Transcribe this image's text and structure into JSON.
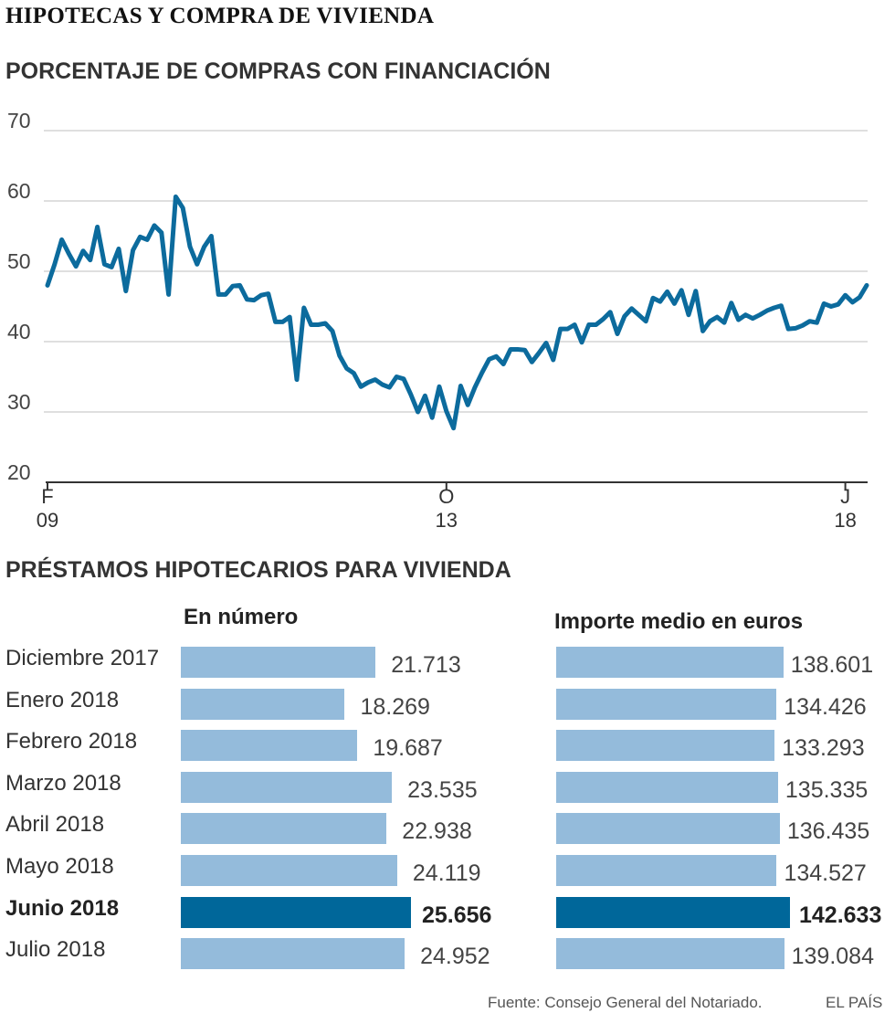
{
  "title": "HIPOTECAS Y COMPRA DE VIVIENDA",
  "footer": {
    "source": "Fuente: Consejo General del Notariado.",
    "publisher": "EL PAÍS"
  },
  "colors": {
    "line": "#0c6b9d",
    "bar": "#94bbdb",
    "bar_highlight": "#00679a",
    "grid": "#cccccc"
  },
  "chart_data": [
    {
      "type": "line",
      "title": "PORCENTAJE DE COMPRAS CON FINANCIACIÓN",
      "xlabel": "",
      "ylabel": "",
      "ylim": [
        20,
        70
      ],
      "yticks": [
        "70",
        "60",
        "50",
        "40",
        "30",
        "20"
      ],
      "xticks": [
        {
          "month": "F",
          "year": "09",
          "index": 0
        },
        {
          "month": "O",
          "year": "13",
          "index": 56
        },
        {
          "month": "J",
          "year": "18",
          "index": 112
        }
      ],
      "series": [
        {
          "name": "Porcentaje de compras con financiación",
          "values": [
            48,
            51,
            54.5,
            52.5,
            50.7,
            52.9,
            51.6,
            56.3,
            51,
            50.6,
            53.2,
            47.2,
            53,
            54.9,
            54.5,
            56.5,
            55.5,
            46.7,
            60.6,
            59,
            53.5,
            51,
            53.5,
            55,
            46.7,
            46.7,
            47.9,
            48,
            46,
            45.9,
            46.6,
            46.8,
            42.8,
            42.8,
            43.5,
            34.6,
            44.8,
            42.4,
            42.4,
            42.6,
            41.5,
            38,
            36.2,
            35.5,
            33.6,
            34.2,
            34.6,
            33.9,
            33.5,
            35,
            34.7,
            32.5,
            30,
            32.3,
            29.2,
            33.6,
            30.1,
            27.7,
            33.7,
            31,
            33.5,
            35.6,
            37.5,
            37.9,
            36.8,
            38.9,
            38.9,
            38.8,
            37.1,
            38.4,
            39.8,
            37.4,
            41.8,
            41.8,
            42.4,
            39.9,
            42.4,
            42.4,
            43.2,
            44.2,
            41.1,
            43.6,
            44.7,
            43.8,
            42.9,
            46.2,
            45.7,
            47.1,
            45.4,
            47.3,
            43.8,
            47.2,
            41.5,
            42.9,
            43.5,
            42.7,
            45.5,
            43.1,
            43.8,
            43.3,
            43.8,
            44.4,
            44.8,
            45.1,
            41.8,
            41.9,
            42.3,
            42.9,
            42.7,
            45.4,
            45,
            45.3,
            46.6,
            45.6,
            46.3,
            48
          ]
        }
      ]
    },
    {
      "type": "bar",
      "orientation": "horizontal",
      "title": "PRÉSTAMOS HIPOTECARIOS PARA VIVIENDA",
      "subtitle": "En número",
      "categories": [
        "Diciembre 2017",
        "Enero 2018",
        "Febrero 2018",
        "Marzo 2018",
        "Abril 2018",
        "Mayo 2018",
        "Junio 2018",
        "Julio 2018"
      ],
      "values": [
        21713,
        18269,
        19687,
        23535,
        22938,
        24119,
        25656,
        24952
      ],
      "labels": [
        "21.713",
        "18.269",
        "19.687",
        "23.535",
        "22.938",
        "24.119",
        "25.656",
        "24.952"
      ],
      "highlight": "Junio 2018",
      "xlim": [
        0,
        25656
      ]
    },
    {
      "type": "bar",
      "orientation": "horizontal",
      "title": "PRÉSTAMOS HIPOTECARIOS PARA VIVIENDA",
      "subtitle": "Importe medio en euros",
      "categories": [
        "Diciembre 2017",
        "Enero 2018",
        "Febrero 2018",
        "Marzo 2018",
        "Abril 2018",
        "Mayo 2018",
        "Junio 2018",
        "Julio 2018"
      ],
      "values": [
        138601,
        134426,
        133293,
        135335,
        136435,
        134527,
        142633,
        139084
      ],
      "labels": [
        "138.601",
        "134.426",
        "133.293",
        "135.335",
        "136.435",
        "134.527",
        "142.633",
        "139.084"
      ],
      "highlight": "Junio 2018",
      "xlim": [
        0,
        142633
      ]
    }
  ]
}
